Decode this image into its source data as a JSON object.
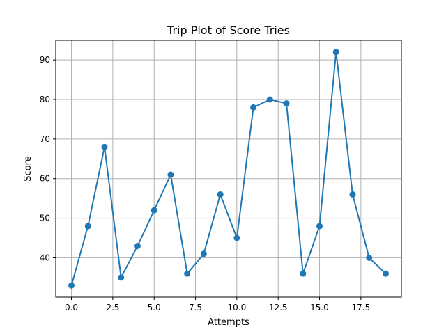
{
  "chart_data": {
    "type": "line",
    "title": "Trip Plot of Score Tries",
    "xlabel": "Attempts",
    "ylabel": "Score",
    "xlim": [
      -0.95,
      19.95
    ],
    "ylim": [
      30.05,
      94.95
    ],
    "x_ticks": [
      0.0,
      2.5,
      5.0,
      7.5,
      10.0,
      12.5,
      15.0,
      17.5
    ],
    "x_tick_labels": [
      "0.0",
      "2.5",
      "5.0",
      "7.5",
      "10.0",
      "12.5",
      "15.0",
      "17.5"
    ],
    "y_ticks": [
      40,
      50,
      60,
      70,
      80,
      90
    ],
    "y_tick_labels": [
      "40",
      "50",
      "60",
      "70",
      "80",
      "90"
    ],
    "grid": true,
    "marker": "circle",
    "x": [
      0,
      1,
      2,
      3,
      4,
      5,
      6,
      7,
      8,
      9,
      10,
      11,
      12,
      13,
      14,
      15,
      16,
      17,
      18,
      19
    ],
    "series": [
      {
        "values": [
          33,
          48,
          68,
          35,
          43,
          52,
          61,
          36,
          41,
          56,
          45,
          78,
          80,
          79,
          36,
          48,
          92,
          56,
          40,
          36
        ],
        "color": "#1f77b4"
      }
    ]
  }
}
